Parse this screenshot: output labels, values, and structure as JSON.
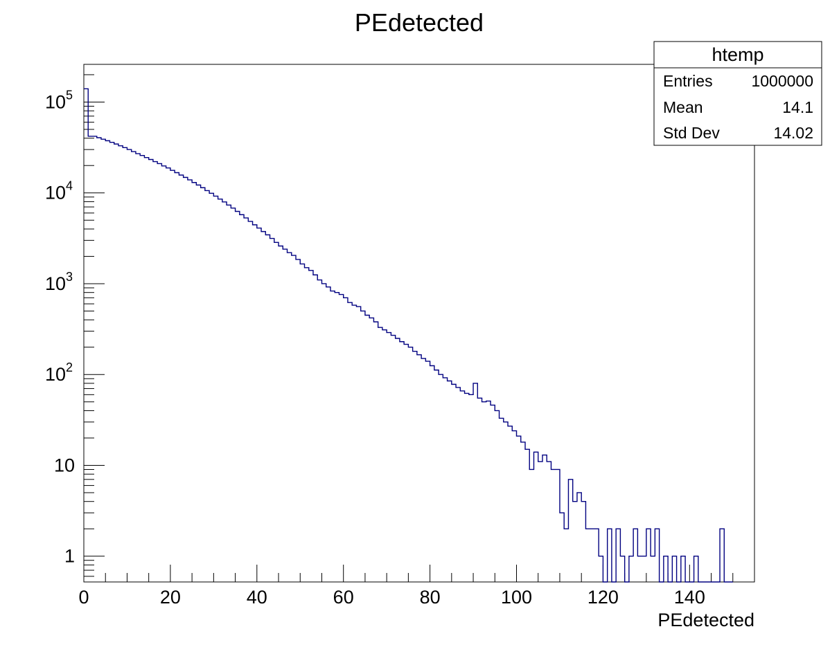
{
  "chart_data": {
    "type": "histogram",
    "title": "PEdetected",
    "xlabel": "PEdetected",
    "ylabel": "",
    "xlim": [
      0,
      155
    ],
    "ylim": [
      0.52,
      260000
    ],
    "yscale": "log",
    "bin_width": 1,
    "x_ticks": [
      0,
      20,
      40,
      60,
      80,
      100,
      120,
      140
    ],
    "x_tick_labels": [
      "0",
      "20",
      "40",
      "60",
      "80",
      "100",
      "120",
      "140"
    ],
    "y_ticks": [
      1,
      10,
      100,
      1000,
      10000,
      100000
    ],
    "y_tick_labels": [
      {
        "base": "1",
        "exp": ""
      },
      {
        "base": "10",
        "exp": ""
      },
      {
        "base": "10",
        "exp": "2"
      },
      {
        "base": "10",
        "exp": "3"
      },
      {
        "base": "10",
        "exp": "4"
      },
      {
        "base": "10",
        "exp": "5"
      }
    ],
    "line_color": "#000080",
    "bin_edges_start": 0,
    "counts": [
      140000,
      42000,
      42000,
      40500,
      39000,
      37500,
      36000,
      34500,
      33000,
      31500,
      30000,
      28500,
      27000,
      25800,
      24500,
      23300,
      22100,
      21000,
      19800,
      18800,
      17700,
      16700,
      15700,
      14800,
      13900,
      13000,
      12200,
      11400,
      10600,
      9900,
      9200,
      8550,
      7950,
      7350,
      6800,
      6250,
      5750,
      5300,
      4850,
      4450,
      4100,
      3750,
      3450,
      3150,
      2850,
      2600,
      2400,
      2200,
      2050,
      1850,
      1650,
      1500,
      1400,
      1250,
      1100,
      1000,
      920,
      830,
      800,
      760,
      700,
      620,
      580,
      560,
      500,
      450,
      420,
      380,
      330,
      310,
      290,
      270,
      250,
      230,
      215,
      200,
      180,
      165,
      150,
      140,
      125,
      112,
      100,
      92,
      85,
      78,
      72,
      66,
      62,
      60,
      80,
      55,
      50,
      51,
      46,
      40,
      33,
      30,
      27,
      24,
      21,
      18,
      15,
      9,
      14,
      11,
      13,
      11,
      9,
      9,
      3,
      2,
      7,
      4,
      5,
      4,
      2,
      2,
      2,
      1,
      0,
      2,
      0,
      2,
      1,
      0,
      1,
      2,
      1,
      1,
      2,
      1,
      2,
      0,
      1,
      0,
      1,
      0,
      1,
      0,
      0,
      1,
      0,
      0,
      0,
      0,
      0,
      2,
      0,
      0
    ]
  },
  "stats_box": {
    "name": "htemp",
    "rows": [
      {
        "label": "Entries",
        "value": "1000000"
      },
      {
        "label": "Mean",
        "value": "14.1"
      },
      {
        "label": "Std Dev",
        "value": "14.02"
      }
    ]
  }
}
